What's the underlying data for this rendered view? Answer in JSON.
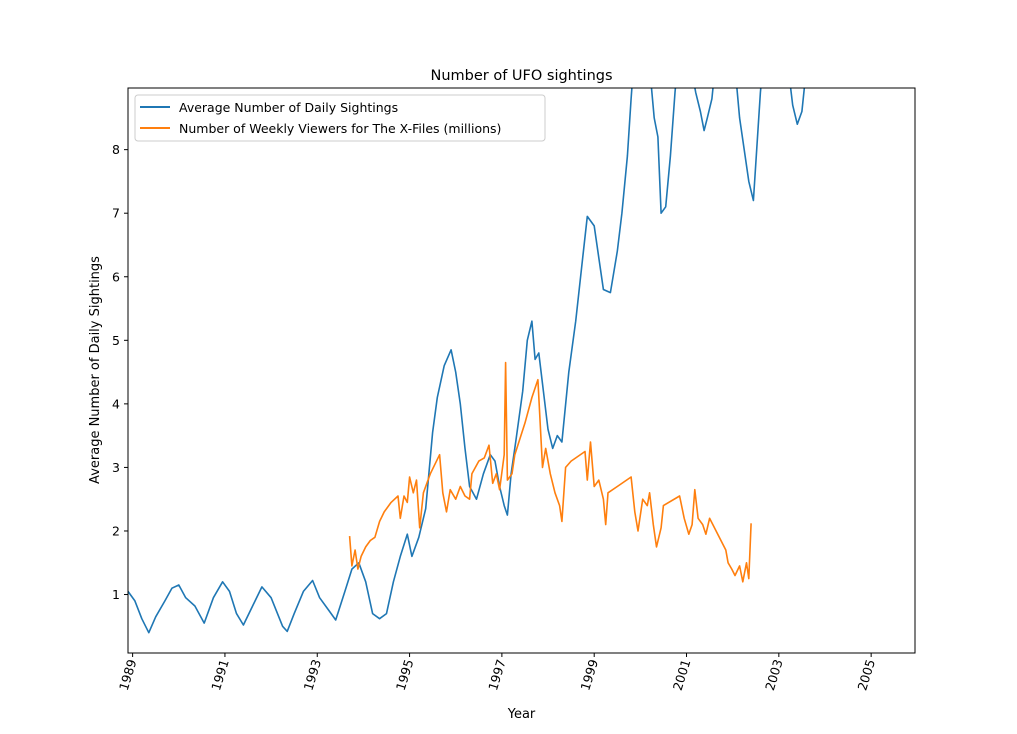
{
  "chart_data": {
    "type": "line",
    "title": "Number of UFO sightings",
    "xlabel": "Year",
    "ylabel": "Average Number of Daily Sightings",
    "xlim": [
      1988.9,
      2005.95
    ],
    "ylim": [
      0.08,
      8.97
    ],
    "x_ticks": [
      1989,
      1991,
      1993,
      1995,
      1997,
      1999,
      2001,
      2003,
      2005
    ],
    "x_tick_labels": [
      "1989",
      "1991",
      "1993",
      "1995",
      "1997",
      "1999",
      "2001",
      "2003",
      "2005"
    ],
    "y_ticks": [
      1,
      2,
      3,
      4,
      5,
      6,
      7,
      8
    ],
    "y_tick_labels": [
      "1",
      "2",
      "3",
      "4",
      "5",
      "6",
      "7",
      "8"
    ],
    "legend_position": "top-left",
    "grid": false,
    "series": [
      {
        "name": "Average Number of Daily Sightings",
        "color": "#1f77b4",
        "points": [
          [
            1988.9,
            1.05
          ],
          [
            1989.05,
            0.9
          ],
          [
            1989.2,
            0.62
          ],
          [
            1989.35,
            0.4
          ],
          [
            1989.5,
            0.65
          ],
          [
            1989.7,
            0.9
          ],
          [
            1989.85,
            1.1
          ],
          [
            1990.0,
            1.15
          ],
          [
            1990.15,
            0.95
          ],
          [
            1990.35,
            0.82
          ],
          [
            1990.55,
            0.55
          ],
          [
            1990.75,
            0.95
          ],
          [
            1990.95,
            1.2
          ],
          [
            1991.1,
            1.05
          ],
          [
            1991.25,
            0.7
          ],
          [
            1991.4,
            0.52
          ],
          [
            1991.6,
            0.82
          ],
          [
            1991.8,
            1.12
          ],
          [
            1992.0,
            0.95
          ],
          [
            1992.25,
            0.5
          ],
          [
            1992.35,
            0.42
          ],
          [
            1992.5,
            0.7
          ],
          [
            1992.7,
            1.05
          ],
          [
            1992.9,
            1.22
          ],
          [
            1993.05,
            0.95
          ],
          [
            1993.25,
            0.75
          ],
          [
            1993.4,
            0.6
          ],
          [
            1993.6,
            1.05
          ],
          [
            1993.75,
            1.4
          ],
          [
            1993.9,
            1.5
          ],
          [
            1994.05,
            1.2
          ],
          [
            1994.2,
            0.7
          ],
          [
            1994.35,
            0.62
          ],
          [
            1994.5,
            0.7
          ],
          [
            1994.65,
            1.2
          ],
          [
            1994.8,
            1.6
          ],
          [
            1994.95,
            1.95
          ],
          [
            1995.05,
            1.6
          ],
          [
            1995.2,
            1.9
          ],
          [
            1995.35,
            2.35
          ],
          [
            1995.5,
            3.55
          ],
          [
            1995.6,
            4.1
          ],
          [
            1995.75,
            4.6
          ],
          [
            1995.9,
            4.85
          ],
          [
            1996.0,
            4.5
          ],
          [
            1996.1,
            4.0
          ],
          [
            1996.2,
            3.3
          ],
          [
            1996.3,
            2.7
          ],
          [
            1996.45,
            2.5
          ],
          [
            1996.6,
            2.9
          ],
          [
            1996.75,
            3.2
          ],
          [
            1996.85,
            3.1
          ],
          [
            1996.95,
            2.7
          ],
          [
            1997.05,
            2.4
          ],
          [
            1997.12,
            2.25
          ],
          [
            1997.2,
            2.9
          ],
          [
            1997.3,
            3.4
          ],
          [
            1997.45,
            4.2
          ],
          [
            1997.55,
            5.0
          ],
          [
            1997.65,
            5.3
          ],
          [
            1997.72,
            4.7
          ],
          [
            1997.8,
            4.8
          ],
          [
            1997.9,
            4.2
          ],
          [
            1998.0,
            3.6
          ],
          [
            1998.1,
            3.3
          ],
          [
            1998.2,
            3.5
          ],
          [
            1998.3,
            3.4
          ],
          [
            1998.45,
            4.5
          ],
          [
            1998.6,
            5.3
          ],
          [
            1998.75,
            6.3
          ],
          [
            1998.85,
            6.95
          ],
          [
            1999.0,
            6.8
          ],
          [
            1999.1,
            6.3
          ],
          [
            1999.2,
            5.8
          ],
          [
            1999.35,
            5.75
          ],
          [
            1999.5,
            6.4
          ],
          [
            1999.6,
            7.0
          ],
          [
            1999.72,
            7.9
          ],
          [
            1999.8,
            8.8
          ],
          [
            1999.85,
            9.3
          ],
          [
            2000.2,
            9.3
          ],
          [
            2000.3,
            8.5
          ],
          [
            2000.38,
            8.2
          ],
          [
            2000.45,
            7.0
          ],
          [
            2000.55,
            7.1
          ],
          [
            2000.65,
            7.9
          ],
          [
            2000.75,
            8.9
          ],
          [
            2000.8,
            9.3
          ],
          [
            2001.1,
            9.3
          ],
          [
            2001.2,
            8.9
          ],
          [
            2001.3,
            8.6
          ],
          [
            2001.38,
            8.3
          ],
          [
            2001.45,
            8.5
          ],
          [
            2001.55,
            8.8
          ],
          [
            2001.62,
            9.3
          ],
          [
            2002.05,
            9.3
          ],
          [
            2002.15,
            8.5
          ],
          [
            2002.25,
            8.0
          ],
          [
            2002.35,
            7.5
          ],
          [
            2002.45,
            7.2
          ],
          [
            2002.52,
            8.0
          ],
          [
            2002.6,
            8.9
          ],
          [
            2002.65,
            9.3
          ],
          [
            2003.2,
            9.3
          ],
          [
            2003.3,
            8.7
          ],
          [
            2003.4,
            8.4
          ],
          [
            2003.5,
            8.6
          ],
          [
            2003.6,
            9.3
          ]
        ]
      },
      {
        "name": "Number of Weekly Viewers for The X-Files (millions)",
        "color": "#ff7f0e",
        "points": [
          [
            1993.7,
            1.92
          ],
          [
            1993.75,
            1.45
          ],
          [
            1993.82,
            1.7
          ],
          [
            1993.88,
            1.4
          ],
          [
            1993.95,
            1.6
          ],
          [
            1994.05,
            1.75
          ],
          [
            1994.15,
            1.85
          ],
          [
            1994.25,
            1.9
          ],
          [
            1994.35,
            2.15
          ],
          [
            1994.45,
            2.3
          ],
          [
            1994.6,
            2.45
          ],
          [
            1994.75,
            2.55
          ],
          [
            1994.8,
            2.2
          ],
          [
            1994.88,
            2.55
          ],
          [
            1994.95,
            2.45
          ],
          [
            1995.0,
            2.85
          ],
          [
            1995.08,
            2.6
          ],
          [
            1995.15,
            2.8
          ],
          [
            1995.22,
            2.05
          ],
          [
            1995.3,
            2.6
          ],
          [
            1995.45,
            2.9
          ],
          [
            1995.65,
            3.2
          ],
          [
            1995.72,
            2.6
          ],
          [
            1995.8,
            2.3
          ],
          [
            1995.88,
            2.65
          ],
          [
            1996.0,
            2.5
          ],
          [
            1996.1,
            2.7
          ],
          [
            1996.2,
            2.55
          ],
          [
            1996.3,
            2.5
          ],
          [
            1996.35,
            2.9
          ],
          [
            1996.5,
            3.1
          ],
          [
            1996.62,
            3.15
          ],
          [
            1996.72,
            3.35
          ],
          [
            1996.8,
            2.75
          ],
          [
            1996.88,
            2.9
          ],
          [
            1996.95,
            2.65
          ],
          [
            1997.05,
            3.2
          ],
          [
            1997.08,
            4.65
          ],
          [
            1997.12,
            2.8
          ],
          [
            1997.22,
            2.9
          ],
          [
            1997.28,
            3.2
          ],
          [
            1997.5,
            3.7
          ],
          [
            1997.65,
            4.1
          ],
          [
            1997.78,
            4.38
          ],
          [
            1997.88,
            3.0
          ],
          [
            1997.95,
            3.3
          ],
          [
            1998.05,
            2.9
          ],
          [
            1998.15,
            2.6
          ],
          [
            1998.25,
            2.4
          ],
          [
            1998.3,
            2.15
          ],
          [
            1998.38,
            3.0
          ],
          [
            1998.5,
            3.1
          ],
          [
            1998.8,
            3.25
          ],
          [
            1998.85,
            2.8
          ],
          [
            1998.92,
            3.4
          ],
          [
            1999.0,
            2.7
          ],
          [
            1999.1,
            2.8
          ],
          [
            1999.2,
            2.5
          ],
          [
            1999.25,
            2.1
          ],
          [
            1999.3,
            2.6
          ],
          [
            1999.5,
            2.7
          ],
          [
            1999.8,
            2.85
          ],
          [
            1999.88,
            2.3
          ],
          [
            1999.95,
            2.0
          ],
          [
            2000.05,
            2.5
          ],
          [
            2000.15,
            2.4
          ],
          [
            2000.2,
            2.6
          ],
          [
            2000.28,
            2.1
          ],
          [
            2000.35,
            1.75
          ],
          [
            2000.45,
            2.05
          ],
          [
            2000.5,
            2.4
          ],
          [
            2000.85,
            2.55
          ],
          [
            2000.95,
            2.2
          ],
          [
            2001.05,
            1.95
          ],
          [
            2001.12,
            2.1
          ],
          [
            2001.18,
            2.65
          ],
          [
            2001.25,
            2.2
          ],
          [
            2001.35,
            2.1
          ],
          [
            2001.42,
            1.95
          ],
          [
            2001.5,
            2.2
          ],
          [
            2001.85,
            1.7
          ],
          [
            2001.9,
            1.5
          ],
          [
            2001.98,
            1.4
          ],
          [
            2002.05,
            1.3
          ],
          [
            2002.15,
            1.45
          ],
          [
            2002.22,
            1.2
          ],
          [
            2002.3,
            1.5
          ],
          [
            2002.35,
            1.25
          ],
          [
            2002.4,
            2.12
          ]
        ]
      }
    ]
  }
}
